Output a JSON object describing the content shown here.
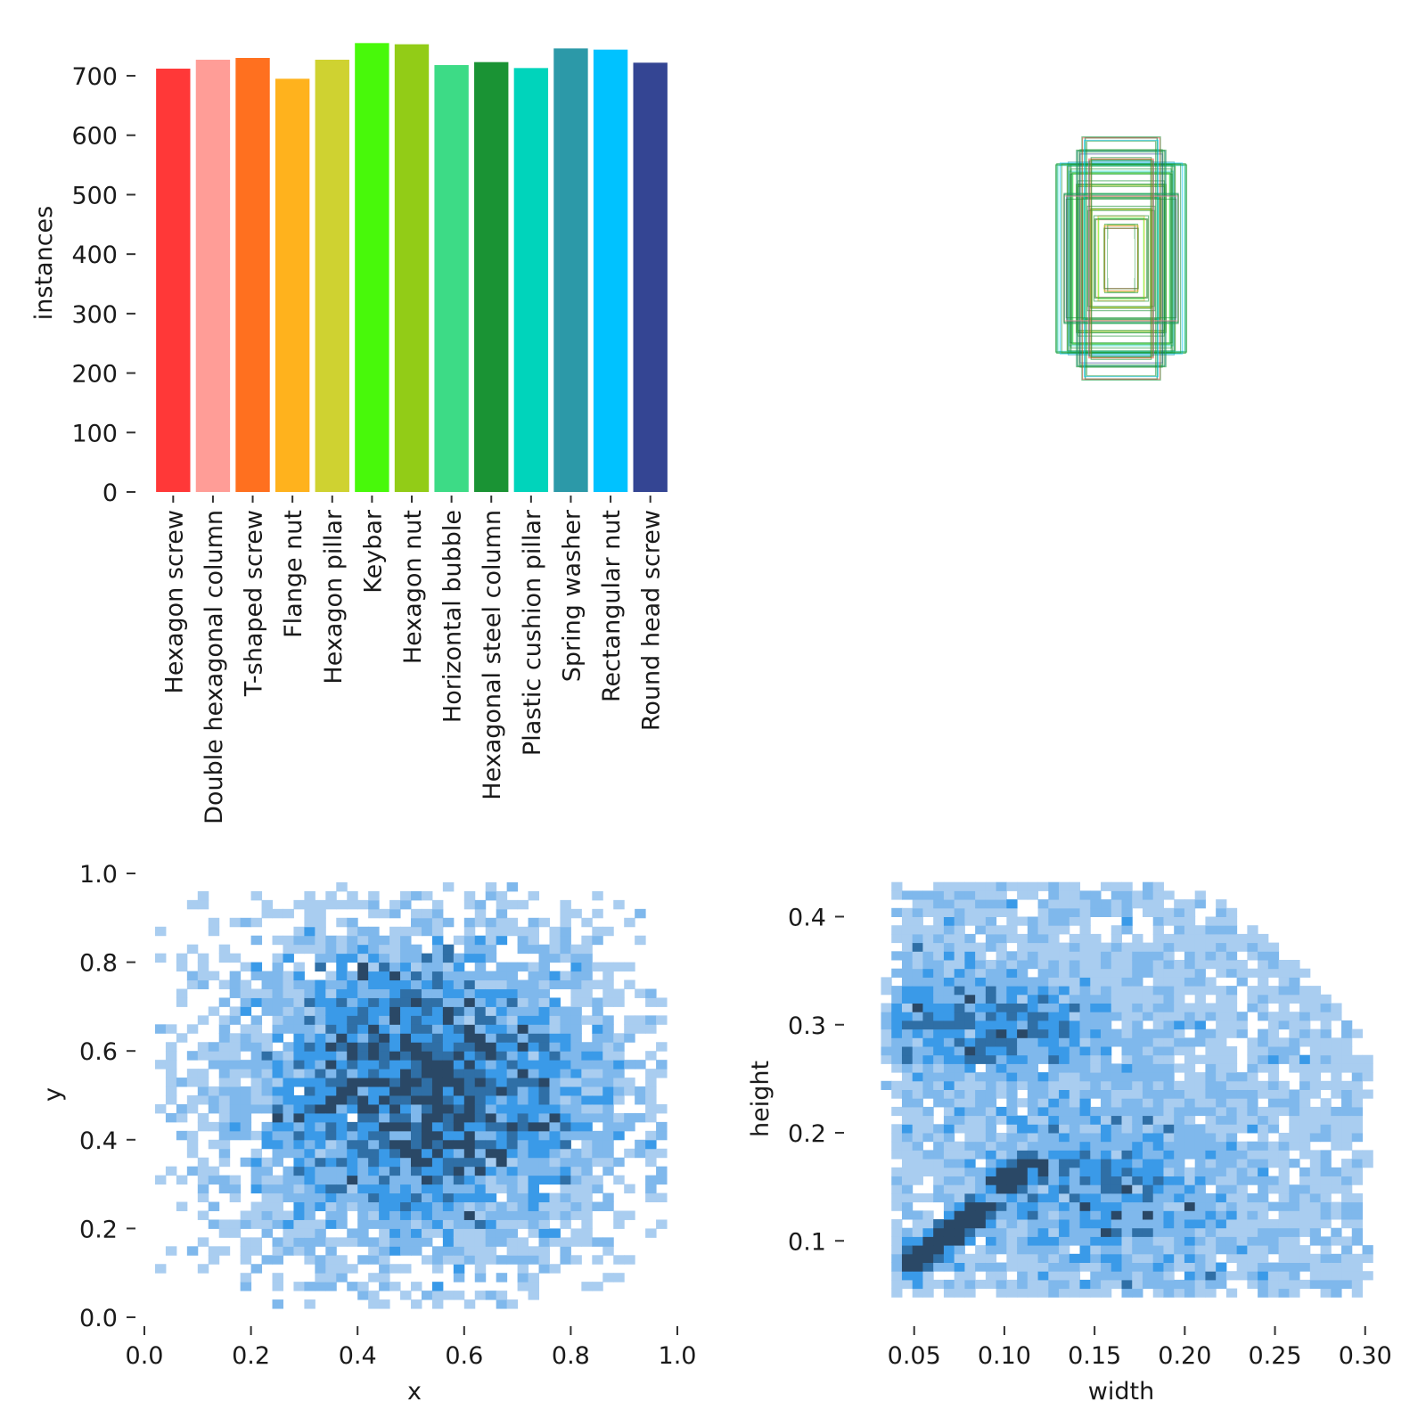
{
  "chart_data": [
    {
      "type": "bar",
      "panel": "top-left",
      "ylabel": "instances",
      "xlabel": "",
      "ylim": [
        0,
        760
      ],
      "yticks": [
        0,
        100,
        200,
        300,
        400,
        500,
        600,
        700
      ],
      "categories": [
        "Hexagon screw",
        "Double hexagonal column",
        "T-shaped screw",
        "Flange nut",
        "Hexagon pillar",
        "Keybar",
        "Hexagon nut",
        "Horizontal bubble",
        "Hexagonal steel column",
        "Plastic cushion pillar",
        "Spring washer",
        "Rectangular nut",
        "Round head screw"
      ],
      "values": [
        712,
        727,
        730,
        695,
        727,
        755,
        753,
        718,
        723,
        713,
        746,
        744,
        722
      ],
      "colors": [
        "#ff3838",
        "#ff9d97",
        "#ff701f",
        "#ffb21d",
        "#cfd231",
        "#48f90a",
        "#92cc17",
        "#3ddb86",
        "#1a9334",
        "#00d4bb",
        "#2c99a8",
        "#00c2ff",
        "#344593"
      ]
    },
    {
      "type": "box-overlay",
      "panel": "top-right",
      "description_title": "",
      "center": [
        0.5,
        0.5
      ],
      "box_sizes": [
        [
          0.05,
          0.1
        ],
        [
          0.08,
          0.13
        ],
        [
          0.1,
          0.16
        ],
        [
          0.12,
          0.2
        ],
        [
          0.14,
          0.24
        ],
        [
          0.16,
          0.28
        ],
        [
          0.17,
          0.3
        ],
        [
          0.2,
          0.3
        ],
        [
          0.14,
          0.34
        ],
        [
          0.12,
          0.38
        ],
        [
          0.18,
          0.2
        ],
        [
          0.1,
          0.32
        ]
      ],
      "colors": [
        "#ff3838",
        "#ff9d97",
        "#ff701f",
        "#ffb21d",
        "#cfd231",
        "#48f90a",
        "#92cc17",
        "#3ddb86",
        "#1a9334",
        "#00d4bb",
        "#2c99a8",
        "#00c2ff",
        "#344593"
      ]
    },
    {
      "type": "heatmap",
      "panel": "bottom-left",
      "xlabel": "x",
      "ylabel": "y",
      "xlim": [
        0.0,
        1.0
      ],
      "ylim": [
        0.0,
        1.0
      ],
      "xticks": [
        "0.0",
        "0.2",
        "0.4",
        "0.6",
        "0.8",
        "1.0"
      ],
      "yticks": [
        "0.0",
        "0.2",
        "0.4",
        "0.6",
        "0.8",
        "1.0"
      ],
      "bins": 50,
      "distribution": {
        "mean": [
          0.52,
          0.5
        ],
        "spread": [
          0.2,
          0.2
        ],
        "data_range_x": [
          0.03,
          0.98
        ],
        "data_range_y": [
          0.03,
          0.97
        ]
      }
    },
    {
      "type": "heatmap",
      "panel": "bottom-right",
      "xlabel": "width",
      "ylabel": "height",
      "xlim": [
        0.02,
        0.31
      ],
      "ylim": [
        0.04,
        0.44
      ],
      "xticks": [
        "0.05",
        "0.10",
        "0.15",
        "0.20",
        "0.25",
        "0.30"
      ],
      "yticks": [
        "0.1",
        "0.2",
        "0.3",
        "0.4"
      ],
      "bins": 50,
      "dense_points": [
        [
          0.05,
          0.08
        ],
        [
          0.06,
          0.09
        ],
        [
          0.07,
          0.105
        ],
        [
          0.08,
          0.12
        ],
        [
          0.085,
          0.13
        ],
        [
          0.1,
          0.155
        ],
        [
          0.11,
          0.165
        ]
      ]
    }
  ]
}
